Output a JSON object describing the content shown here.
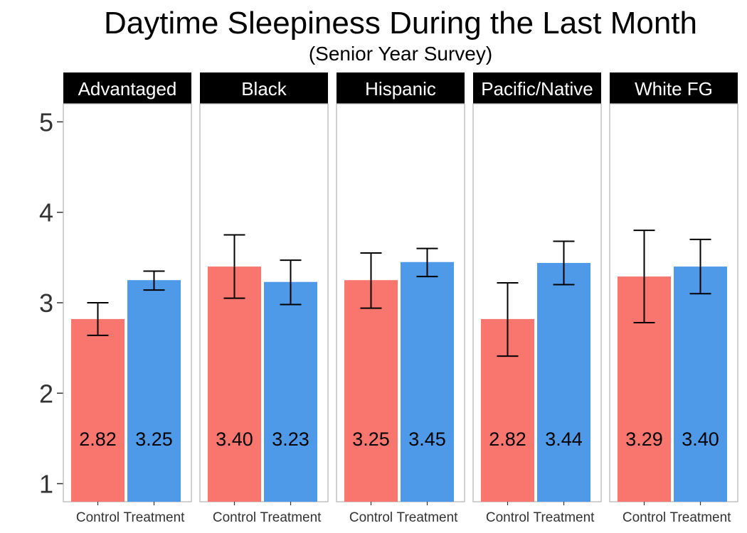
{
  "chart_data": {
    "type": "bar",
    "title": "Daytime Sleepiness During the Last Month",
    "subtitle": "(Senior Year Survey)",
    "xlabel": "",
    "ylabel": "",
    "ylim": [
      0.8,
      5.2
    ],
    "yticks": [
      1,
      2,
      3,
      4,
      5
    ],
    "grid": false,
    "legend": "none",
    "categories": [
      "Control",
      "Treatment"
    ],
    "colors": {
      "Control": "#F8766D",
      "Treatment": "#4F9AE8"
    },
    "panels": [
      {
        "label": "Advantaged",
        "values": [
          2.82,
          3.25
        ],
        "value_labels": [
          "2.82",
          "3.25"
        ],
        "error_low": [
          2.64,
          3.14
        ],
        "error_high": [
          3.0,
          3.35
        ]
      },
      {
        "label": "Black",
        "values": [
          3.4,
          3.23
        ],
        "value_labels": [
          "3.40",
          "3.23"
        ],
        "error_low": [
          3.05,
          2.98
        ],
        "error_high": [
          3.75,
          3.47
        ]
      },
      {
        "label": "Hispanic",
        "values": [
          3.25,
          3.45
        ],
        "value_labels": [
          "3.25",
          "3.45"
        ],
        "error_low": [
          2.94,
          3.29
        ],
        "error_high": [
          3.55,
          3.6
        ]
      },
      {
        "label": "Pacific/Native",
        "values": [
          2.82,
          3.44
        ],
        "value_labels": [
          "2.82",
          "3.44"
        ],
        "error_low": [
          2.41,
          3.2
        ],
        "error_high": [
          3.22,
          3.68
        ]
      },
      {
        "label": "White FG",
        "values": [
          3.29,
          3.4
        ],
        "value_labels": [
          "3.29",
          "3.40"
        ],
        "error_low": [
          2.78,
          3.1
        ],
        "error_high": [
          3.8,
          3.7
        ]
      }
    ],
    "label_y_value": 1.5
  }
}
